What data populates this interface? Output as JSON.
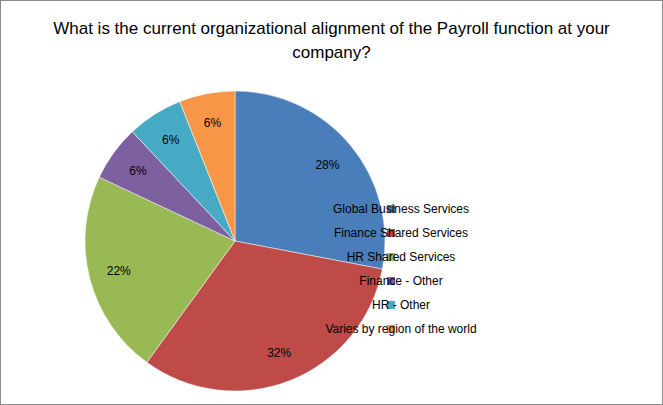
{
  "chart_data": {
    "type": "pie",
    "title": "What is the current organizational alignment of the Payroll function at your company?",
    "categories": [
      "Global Business Services",
      "Finance Shared Services",
      "HR Shared Services",
      "Finance - Other",
      "HR - Other",
      "Varies by region of the world"
    ],
    "values": [
      28,
      32,
      22,
      6,
      6,
      6
    ],
    "value_labels": [
      "28%",
      "32%",
      "22%",
      "6%",
      "6%",
      "6%"
    ],
    "colors": [
      "#4a7ebb",
      "#be4b48",
      "#98b954",
      "#7d60a0",
      "#46aac5",
      "#f79646"
    ],
    "data_labels": true,
    "legend": "right"
  }
}
